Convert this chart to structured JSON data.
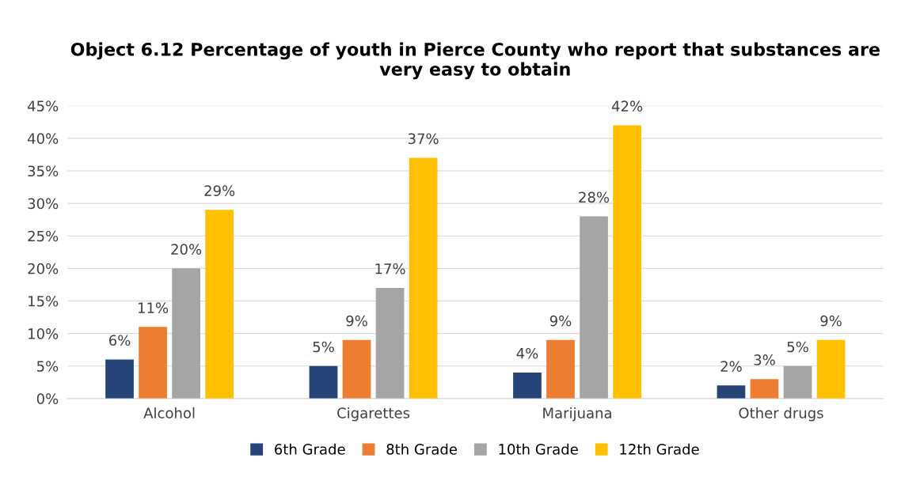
{
  "chart_data": {
    "type": "bar",
    "title": "Object 6.12 Percentage of youth in Pierce County who report that substances are very easy to obtain",
    "categories": [
      "Alcohol",
      "Cigarettes",
      "Marijuana",
      "Other drugs"
    ],
    "series": [
      {
        "name": "6th Grade",
        "color": "#264478",
        "values": [
          6,
          5,
          4,
          2
        ],
        "value_labels": [
          "6%",
          "5%",
          "4%",
          "2%"
        ]
      },
      {
        "name": "8th Grade",
        "color": "#ed7d31",
        "values": [
          11,
          9,
          9,
          3
        ],
        "value_labels": [
          "11%",
          "9%",
          "9%",
          "3%"
        ]
      },
      {
        "name": "10th Grade",
        "color": "#a5a5a5",
        "values": [
          20,
          17,
          28,
          5
        ],
        "value_labels": [
          "20%",
          "17%",
          "28%",
          "5%"
        ]
      },
      {
        "name": "12th Grade",
        "color": "#ffc000",
        "values": [
          29,
          37,
          42,
          9
        ],
        "value_labels": [
          "29%",
          "37%",
          "42%",
          "9%"
        ]
      }
    ],
    "ylim": [
      0,
      45
    ],
    "yticks": [
      {
        "value": 0,
        "label": "0%"
      },
      {
        "value": 5,
        "label": "5%"
      },
      {
        "value": 10,
        "label": "10%"
      },
      {
        "value": 15,
        "label": "15%"
      },
      {
        "value": 20,
        "label": "20%"
      },
      {
        "value": 25,
        "label": "25%"
      },
      {
        "value": 30,
        "label": "30%"
      },
      {
        "value": 35,
        "label": "35%"
      },
      {
        "value": 40,
        "label": "40%"
      },
      {
        "value": 45,
        "label": "45%"
      }
    ],
    "grid": "y",
    "legend": "bottom"
  }
}
